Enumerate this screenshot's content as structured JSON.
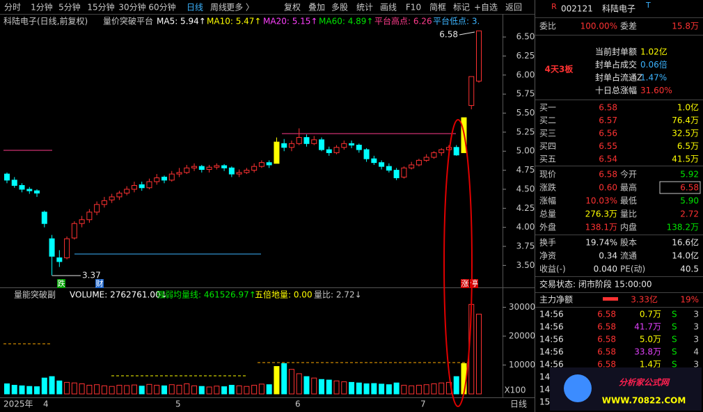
{
  "toolbar": {
    "items": [
      "分时",
      "1分钟",
      "5分钟",
      "15分钟",
      "30分钟",
      "60分钟",
      "日线",
      "周线",
      "更多 〉",
      "复权",
      "叠加",
      "多股",
      "统计",
      "画线",
      "F10",
      "简框",
      "标记",
      "+自选",
      "返回"
    ],
    "active": "日线"
  },
  "price_panel": {
    "title": "科陆电子(日线,前复权)",
    "indicator": "量价突破平台",
    "legend": [
      {
        "text": "MA5: 5.94↑",
        "color": "#ffffff"
      },
      {
        "text": "MA10: 5.47↑",
        "color": "#ffff00"
      },
      {
        "text": "MA20: 5.15↑",
        "color": "#ff40ff"
      },
      {
        "text": "MA60: 4.89↑",
        "color": "#00e600"
      },
      {
        "text": "平台高点: 6.26",
        "color": "#ff3c8c"
      },
      {
        "text": "平台低点: 3.",
        "color": "#3cb4ff"
      }
    ],
    "ylim": [
      3.22,
      6.62
    ],
    "yticks": [
      {
        "value": 6.5,
        "label": "6.50"
      },
      {
        "value": 6.25,
        "label": "6.25"
      },
      {
        "value": 6.0,
        "label": "6.00"
      },
      {
        "value": 5.75,
        "label": "5.75"
      },
      {
        "value": 5.5,
        "label": "5.50"
      },
      {
        "value": 5.25,
        "label": "5.25"
      },
      {
        "value": 5.0,
        "label": "5.00"
      },
      {
        "value": 4.75,
        "label": "4.75"
      },
      {
        "value": 4.5,
        "label": "4.50"
      },
      {
        "value": 4.25,
        "label": "4.25"
      },
      {
        "value": 4.0,
        "label": "4.00"
      },
      {
        "value": 3.75,
        "label": "3.75"
      },
      {
        "value": 3.5,
        "label": "3.50"
      }
    ],
    "candles": [
      [
        4.7,
        4.72,
        4.58,
        4.62
      ],
      [
        4.62,
        4.66,
        4.52,
        4.55
      ],
      [
        4.55,
        4.58,
        4.46,
        4.5
      ],
      [
        4.5,
        4.53,
        4.44,
        4.48
      ],
      [
        4.48,
        4.5,
        4.4,
        4.45
      ],
      [
        4.2,
        4.22,
        4.0,
        4.05
      ],
      [
        3.85,
        3.9,
        3.37,
        3.62
      ],
      [
        3.6,
        3.7,
        3.48,
        3.55
      ],
      [
        3.6,
        3.88,
        3.58,
        3.85
      ],
      [
        3.86,
        4.08,
        3.84,
        4.05
      ],
      [
        4.05,
        4.15,
        4.0,
        4.1
      ],
      [
        4.1,
        4.24,
        4.06,
        4.2
      ],
      [
        4.2,
        4.34,
        4.16,
        4.3
      ],
      [
        4.3,
        4.4,
        4.26,
        4.35
      ],
      [
        4.36,
        4.44,
        4.32,
        4.4
      ],
      [
        4.4,
        4.48,
        4.36,
        4.45
      ],
      [
        4.45,
        4.54,
        4.42,
        4.5
      ],
      [
        4.5,
        4.6,
        4.46,
        4.55
      ],
      [
        4.56,
        4.6,
        4.48,
        4.52
      ],
      [
        4.52,
        4.64,
        4.5,
        4.6
      ],
      [
        4.6,
        4.7,
        4.56,
        4.65
      ],
      [
        4.66,
        4.68,
        4.58,
        4.62
      ],
      [
        4.62,
        4.74,
        4.6,
        4.7
      ],
      [
        4.7,
        4.78,
        4.66,
        4.72
      ],
      [
        4.72,
        4.82,
        4.7,
        4.78
      ],
      [
        4.78,
        4.84,
        4.74,
        4.8
      ],
      [
        4.8,
        4.82,
        4.72,
        4.76
      ],
      [
        4.76,
        4.82,
        4.72,
        4.79
      ],
      [
        4.79,
        4.84,
        4.76,
        4.81
      ],
      [
        4.81,
        4.83,
        4.74,
        4.78
      ],
      [
        4.78,
        4.8,
        4.66,
        4.7
      ],
      [
        4.7,
        4.76,
        4.66,
        4.72
      ],
      [
        4.72,
        4.78,
        4.7,
        4.75
      ],
      [
        4.75,
        4.84,
        4.72,
        4.8
      ],
      [
        4.8,
        4.88,
        4.78,
        4.85
      ],
      [
        4.85,
        4.88,
        4.78,
        4.82
      ],
      [
        4.84,
        5.18,
        4.84,
        5.12
      ],
      [
        5.1,
        5.16,
        5.0,
        5.05
      ],
      [
        5.05,
        5.14,
        5.0,
        5.1
      ],
      [
        5.1,
        5.3,
        5.08,
        5.18
      ],
      [
        5.18,
        5.22,
        5.06,
        5.1
      ],
      [
        5.1,
        5.2,
        5.08,
        5.15
      ],
      [
        5.15,
        5.18,
        5.0,
        5.02
      ],
      [
        5.02,
        5.06,
        4.94,
        4.98
      ],
      [
        4.98,
        5.08,
        4.96,
        5.05
      ],
      [
        5.05,
        5.14,
        5.02,
        5.1
      ],
      [
        5.1,
        5.14,
        5.04,
        5.08
      ],
      [
        5.08,
        5.1,
        4.98,
        5.02
      ],
      [
        5.02,
        5.04,
        4.86,
        4.9
      ],
      [
        4.9,
        4.94,
        4.82,
        4.85
      ],
      [
        4.85,
        4.88,
        4.76,
        4.8
      ],
      [
        4.8,
        4.84,
        4.72,
        4.75
      ],
      [
        4.75,
        4.78,
        4.62,
        4.65
      ],
      [
        4.66,
        4.8,
        4.64,
        4.78
      ],
      [
        4.78,
        4.86,
        4.76,
        4.82
      ],
      [
        4.82,
        4.9,
        4.8,
        4.88
      ],
      [
        4.88,
        4.96,
        4.86,
        4.92
      ],
      [
        4.92,
        5.0,
        4.9,
        4.98
      ],
      [
        4.98,
        5.04,
        4.94,
        5.02
      ],
      [
        5.02,
        5.08,
        4.98,
        5.05
      ],
      [
        5.05,
        5.08,
        4.94,
        4.95
      ],
      [
        4.98,
        5.44,
        4.98,
        5.44
      ],
      [
        5.6,
        5.98,
        5.55,
        5.98
      ],
      [
        5.92,
        6.58,
        5.9,
        6.58
      ]
    ],
    "annotations": {
      "high": "6.58",
      "low": "3.37",
      "tags": [
        "跌",
        "财",
        "涨",
        "停"
      ]
    }
  },
  "volume_panel": {
    "indicator": "量能突破副",
    "legend": [
      {
        "text": "VOLUME: 2762761.00↓",
        "color": "#ffffff"
      },
      {
        "text": "强弱均量线: 461526.97↑",
        "color": "#00e600"
      },
      {
        "text": "五倍地量: 0.00",
        "color": "#ffff00"
      },
      {
        "text": "量比: 2.72↓",
        "color": "#c8c8c8"
      }
    ],
    "ylim": [
      0,
      35660
    ],
    "yticks": [
      10000,
      20000,
      30000
    ],
    "unit": "X100",
    "values": [
      3500,
      3000,
      2800,
      2600,
      2500,
      5500,
      6000,
      4500,
      4000,
      3800,
      3500,
      3000,
      3200,
      2800,
      2600,
      3000,
      2900,
      3100,
      2700,
      3300,
      3000,
      2800,
      3200,
      3000,
      3500,
      2800,
      2600,
      2400,
      2700,
      2500,
      3000,
      2800,
      2600,
      3000,
      3400,
      3200,
      9500,
      10500,
      8500,
      7000,
      6000,
      5500,
      5000,
      4800,
      4500,
      4200,
      4000,
      3800,
      3500,
      3600,
      3400,
      3200,
      3800,
      3000,
      2800,
      3000,
      3200,
      3500,
      3800,
      4000,
      6000,
      10500,
      31000,
      27627.61
    ]
  },
  "x_axis": {
    "labels": [
      "2025年",
      "4",
      "5",
      "6",
      "7"
    ],
    "period": "日线"
  },
  "side": {
    "header": {
      "badge": "R",
      "code": "002121",
      "name": "科陆电子",
      "tag": "T"
    },
    "bid_ratio": [
      {
        "t": "委比"
      },
      {
        "t": "100.00%",
        "c": "#ff3232"
      },
      {
        "t": "委差"
      },
      {
        "t": "15.8万",
        "c": "#ff3232"
      }
    ],
    "seal": {
      "badge": "4天3板",
      "rows": [
        {
          "t": "当前封单额",
          "v": "1.02亿",
          "c": "#ffff00"
        },
        {
          "t": "封单占成交",
          "v": "0.06倍",
          "c": "#3cb4ff"
        },
        {
          "t": "封单占流通Z",
          "v": "1.47%",
          "c": "#3cb4ff"
        },
        {
          "t": "十日总涨幅",
          "v": "31.60%",
          "c": "#ff3232"
        }
      ]
    },
    "bids": [
      [
        "买一",
        "6.58",
        "1.0亿"
      ],
      [
        "买二",
        "6.57",
        "76.4万"
      ],
      [
        "买三",
        "6.56",
        "32.5万"
      ],
      [
        "买四",
        "6.55",
        "6.5万"
      ],
      [
        "买五",
        "6.54",
        "41.5万"
      ]
    ],
    "quote": [
      [
        {
          "t": "现价"
        },
        {
          "t": "6.58",
          "c": "#ff3232"
        },
        {
          "t": "今开"
        },
        {
          "t": "5.92",
          "c": "#00e600"
        }
      ],
      [
        {
          "t": "涨跌"
        },
        {
          "t": "0.60",
          "c": "#ff3232"
        },
        {
          "t": "最高"
        },
        {
          "t": "6.58",
          "c": "#ff3232"
        }
      ],
      [
        {
          "t": "涨幅"
        },
        {
          "t": "10.03%",
          "c": "#ff3232"
        },
        {
          "t": "最低"
        },
        {
          "t": "5.90",
          "c": "#00e600"
        }
      ],
      [
        {
          "t": "总量"
        },
        {
          "t": "276.3万",
          "c": "#ffff00"
        },
        {
          "t": "量比"
        },
        {
          "t": "2.72",
          "c": "#ff3232"
        }
      ],
      [
        {
          "t": "外盘"
        },
        {
          "t": "138.1万",
          "c": "#ff3232"
        },
        {
          "t": "内盘"
        },
        {
          "t": "138.2万",
          "c": "#00e600"
        }
      ]
    ],
    "fund": [
      [
        {
          "t": "换手"
        },
        {
          "t": "19.74%",
          "c": "#e6e6e6"
        },
        {
          "t": "股本"
        },
        {
          "t": "16.6亿",
          "c": "#e6e6e6"
        }
      ],
      [
        {
          "t": "净资"
        },
        {
          "t": "0.34",
          "c": "#e6e6e6"
        },
        {
          "t": "流通"
        },
        {
          "t": "14.0亿",
          "c": "#e6e6e6"
        }
      ],
      [
        {
          "t": "收益(-)"
        },
        {
          "t": "0.040",
          "c": "#e6e6e6"
        },
        {
          "t": "PE(动)"
        },
        {
          "t": "40.5",
          "c": "#e6e6e6"
        }
      ]
    ],
    "status": "交易状态: 闭市阶段 15:00:00",
    "main_flow": [
      "主力净额",
      "3.33亿",
      "19%"
    ],
    "trades": [
      {
        "cells": [
          "14:56",
          "6.58",
          "0.7万",
          "S",
          "3"
        ],
        "c": "#ffff00"
      },
      {
        "cells": [
          "14:56",
          "6.58",
          "41.7万",
          "S",
          "3"
        ],
        "c": "#e040fb"
      },
      {
        "cells": [
          "14:56",
          "6.58",
          "5.0万",
          "S",
          "3"
        ],
        "c": "#ffff00"
      },
      {
        "cells": [
          "14:56",
          "6.58",
          "33.8万",
          "S",
          "4"
        ],
        "c": "#e040fb"
      },
      {
        "cells": [
          "14:56",
          "6.58",
          "1.4万",
          "S",
          "3"
        ],
        "c": "#ffff00"
      },
      {
        "cells": [
          "14:5"
        ],
        "c": "#ffff00"
      },
      {
        "cells": [
          "14:5"
        ],
        "c": "#ffff00"
      },
      {
        "cells": [
          "15:0"
        ],
        "c": "#ffff00"
      }
    ]
  },
  "watermark": {
    "title": "分析家公式网",
    "url": "WWW.70822.COM"
  }
}
